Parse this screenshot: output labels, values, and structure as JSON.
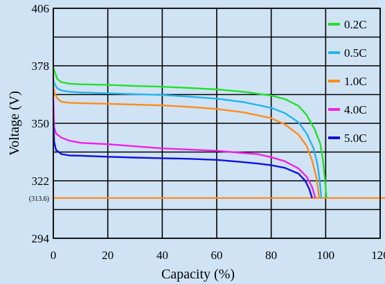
{
  "chart_data": {
    "type": "line",
    "xlabel": "Capacity (%)",
    "ylabel": "Voltage (V)",
    "xlim": [
      0,
      120
    ],
    "ylim": [
      294,
      406
    ],
    "x_ticks": [
      0,
      20,
      40,
      60,
      80,
      100,
      120
    ],
    "y_ticks": [
      294,
      322,
      350,
      378,
      406
    ],
    "grid": true,
    "legend": "right",
    "cutoff": {
      "label": "(313.6)",
      "value": 313.6,
      "color": "#ff8c1a"
    },
    "series": [
      {
        "name": "0.2C",
        "color": "#22e02a",
        "points": [
          [
            0,
            377
          ],
          [
            0.5,
            375
          ],
          [
            1.5,
            371.5
          ],
          [
            3,
            370
          ],
          [
            6,
            369.3
          ],
          [
            10,
            369
          ],
          [
            20,
            368.7
          ],
          [
            30,
            368.2
          ],
          [
            40,
            367.8
          ],
          [
            50,
            367.2
          ],
          [
            60,
            366.5
          ],
          [
            70,
            365.3
          ],
          [
            80,
            363.5
          ],
          [
            85,
            361.8
          ],
          [
            90,
            358.5
          ],
          [
            93,
            354
          ],
          [
            96,
            347
          ],
          [
            98,
            340
          ],
          [
            99,
            332
          ],
          [
            99.8,
            322
          ],
          [
            100.3,
            313.6
          ]
        ]
      },
      {
        "name": "0.5C",
        "color": "#22b4ee",
        "points": [
          [
            0,
            371
          ],
          [
            0.5,
            369
          ],
          [
            1.5,
            367
          ],
          [
            3,
            366
          ],
          [
            6,
            365.3
          ],
          [
            10,
            365
          ],
          [
            20,
            364.6
          ],
          [
            30,
            364.2
          ],
          [
            40,
            363.8
          ],
          [
            50,
            363
          ],
          [
            60,
            362
          ],
          [
            70,
            360.3
          ],
          [
            80,
            357.5
          ],
          [
            85,
            355
          ],
          [
            90,
            350.5
          ],
          [
            93,
            345
          ],
          [
            95.5,
            338
          ],
          [
            97,
            330
          ],
          [
            97.8,
            322
          ],
          [
            98.4,
            313.6
          ]
        ]
      },
      {
        "name": "1.0C",
        "color": "#ff8c1a",
        "points": [
          [
            0,
            368
          ],
          [
            0.5,
            364.5
          ],
          [
            1.5,
            362
          ],
          [
            3,
            360.5
          ],
          [
            6,
            360
          ],
          [
            10,
            359.8
          ],
          [
            20,
            359.5
          ],
          [
            30,
            359.1
          ],
          [
            40,
            358.7
          ],
          [
            50,
            358
          ],
          [
            60,
            357
          ],
          [
            70,
            355.3
          ],
          [
            80,
            352.5
          ],
          [
            85,
            349.5
          ],
          [
            90,
            344.5
          ],
          [
            93,
            339
          ],
          [
            95,
            332
          ],
          [
            96.5,
            324
          ],
          [
            97.2,
            318
          ],
          [
            97.6,
            313.6
          ]
        ]
      },
      {
        "name": "4.0C",
        "color": "#f020e8",
        "points": [
          [
            0,
            362
          ],
          [
            0.3,
            348
          ],
          [
            1,
            345
          ],
          [
            3,
            343
          ],
          [
            6,
            341.5
          ],
          [
            10,
            340.5
          ],
          [
            20,
            339.8
          ],
          [
            30,
            338.8
          ],
          [
            40,
            337.8
          ],
          [
            50,
            337.2
          ],
          [
            60,
            336.6
          ],
          [
            70,
            335.5
          ],
          [
            75,
            335
          ],
          [
            80,
            333.5
          ],
          [
            85,
            331.5
          ],
          [
            90,
            328
          ],
          [
            93,
            324
          ],
          [
            95,
            319
          ],
          [
            96.2,
            313.6
          ]
        ]
      },
      {
        "name": "5.0C",
        "color": "#1010e0",
        "points": [
          [
            0,
            350
          ],
          [
            0.3,
            341
          ],
          [
            1,
            337
          ],
          [
            3,
            335
          ],
          [
            6,
            334.3
          ],
          [
            10,
            334.2
          ],
          [
            20,
            333.7
          ],
          [
            30,
            333.3
          ],
          [
            40,
            333
          ],
          [
            50,
            332.7
          ],
          [
            60,
            332.2
          ],
          [
            68,
            331.3
          ],
          [
            75,
            330.4
          ],
          [
            80,
            329.6
          ],
          [
            85,
            328.3
          ],
          [
            90,
            325.5
          ],
          [
            92.5,
            322
          ],
          [
            94,
            318
          ],
          [
            95,
            313.6
          ]
        ]
      }
    ]
  }
}
